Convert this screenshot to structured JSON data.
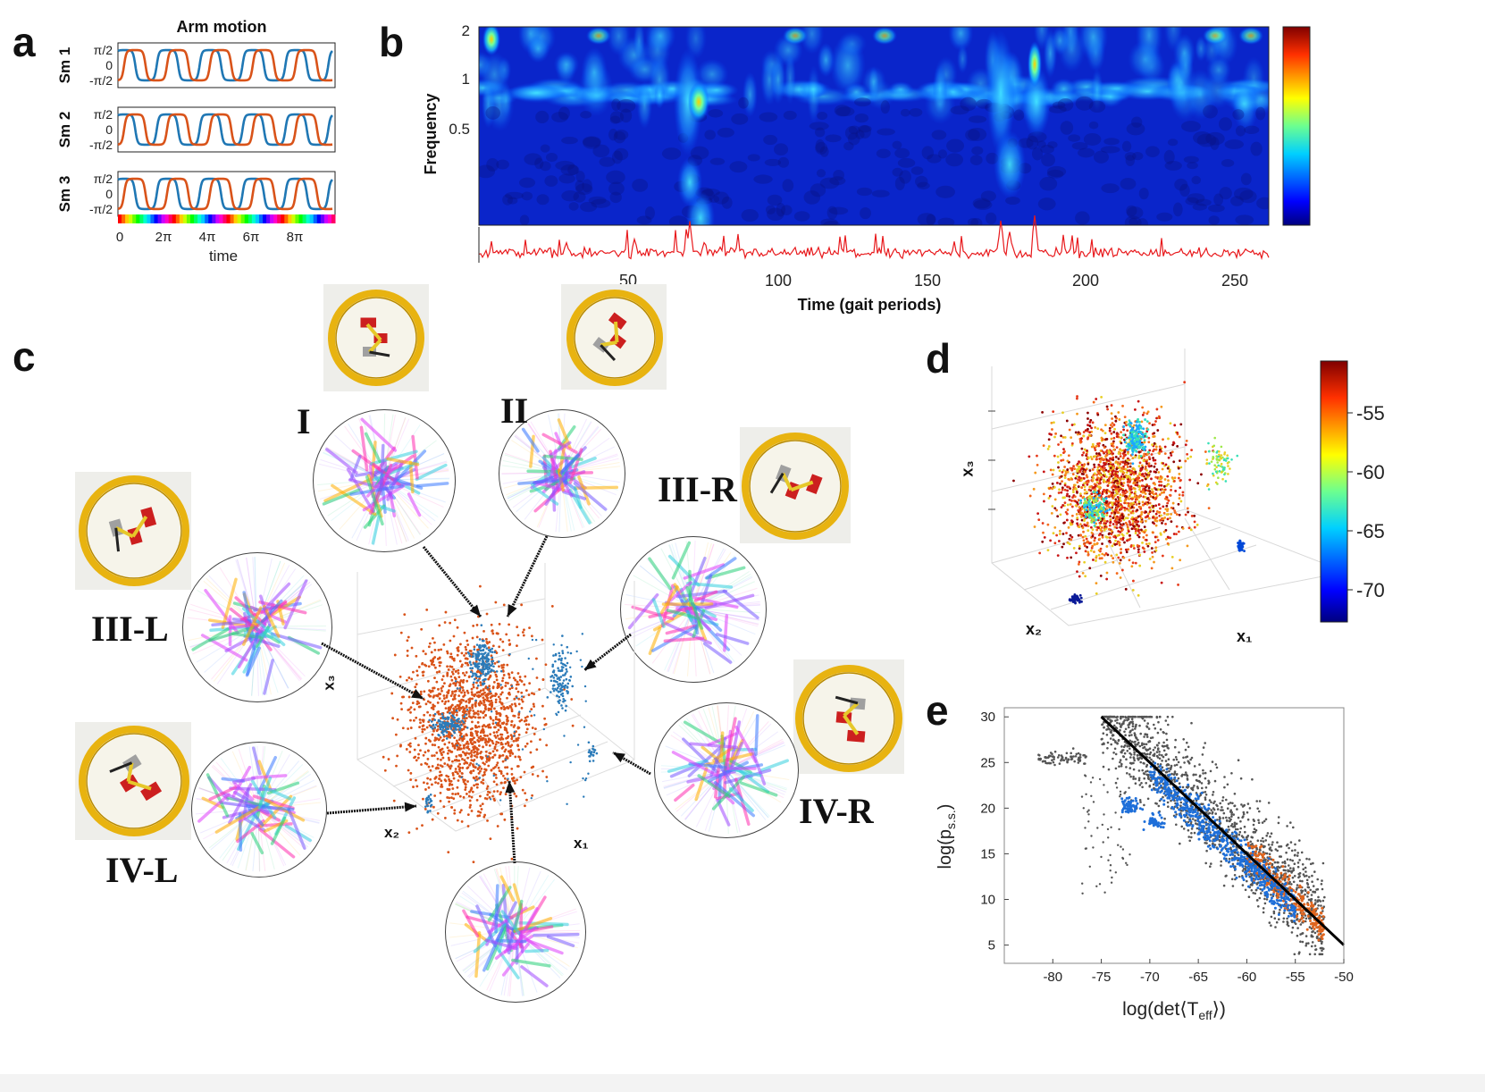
{
  "panels": {
    "a": "a",
    "b": "b",
    "c": "c",
    "d": "d",
    "e": "e"
  },
  "panel_a": {
    "title": "Arm motion",
    "rows": [
      "Sm 1",
      "Sm 2",
      "Sm 3"
    ],
    "y_ticks": [
      "π/2",
      "0",
      "-π/2"
    ],
    "x_ticks": [
      "0",
      "2π",
      "4π",
      "6π",
      "8π"
    ],
    "xlabel": "time",
    "colors": {
      "arm1": "#1f77b4",
      "arm2": "#d95319"
    }
  },
  "panel_b": {
    "ylabel": "Frequency",
    "y_ticks": [
      "2",
      "1",
      "0.5"
    ],
    "x_ticks": [
      "50",
      "100",
      "150",
      "200",
      "250"
    ],
    "xlabel": "Time (gait periods)",
    "trace_color": "#e8191c"
  },
  "panel_c": {
    "states": [
      "I",
      "II",
      "III-R",
      "III-L",
      "IV-L",
      "IV-R"
    ],
    "axis_labels": {
      "x1": "x₁",
      "x2": "x₂",
      "x3": "x₃"
    },
    "colors": {
      "main": "#d95319",
      "clusters": "#2b7bb9"
    }
  },
  "panel_d": {
    "axis_labels": {
      "x1": "x₁",
      "x2": "x₂",
      "x3": "x₃"
    },
    "colorbar_ticks": [
      "-55",
      "-60",
      "-65",
      "-70"
    ]
  },
  "chart_data": {
    "type": "scatter",
    "xlabel": "log(det⟨T_eff⟩)",
    "ylabel": "log(p_s.s.)",
    "xlim": [
      -85,
      -50
    ],
    "ylim": [
      3,
      31
    ],
    "x_ticks": [
      "-80",
      "-75",
      "-70",
      "-65",
      "-60",
      "-55",
      "-50"
    ],
    "y_ticks": [
      "30",
      "25",
      "20",
      "15",
      "10",
      "5"
    ],
    "fit_line": {
      "x": [
        -75,
        -50
      ],
      "y": [
        30,
        5
      ]
    },
    "series": [
      {
        "color": "#555555"
      },
      {
        "color": "#1e6fd9"
      },
      {
        "color": "#e0651e"
      }
    ]
  }
}
